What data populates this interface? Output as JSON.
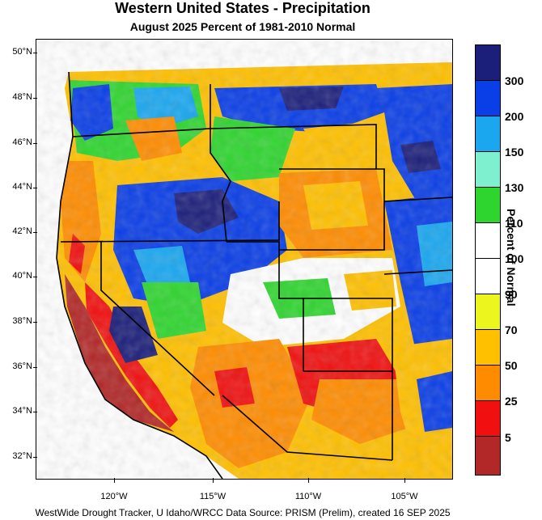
{
  "map": {
    "title": "Western United States - Precipitation",
    "subtitle": "August 2025  Percent of 1981-2010 Normal",
    "colorbar_title": "Percent of Normal",
    "footer": "WestWide Drought Tracker, U Idaho/WRCC Data Source: PRISM (Prelim), created 16 SEP 2025",
    "lat_labels": [
      "50°N",
      "48°N",
      "46°N",
      "44°N",
      "42°N",
      "40°N",
      "38°N",
      "36°N",
      "34°N",
      "32°N"
    ],
    "lon_labels": [
      "120°W",
      "115°W",
      "110°W",
      "105°W"
    ],
    "colorbar": {
      "colors": [
        "#1c1f7a",
        "#0a3ee6",
        "#1aa7f0",
        "#7ef0d0",
        "#2fd52f",
        "#ffffff",
        "#ffffff",
        "#ecf51e",
        "#ffc000",
        "#ff8c00",
        "#f01010",
        "#b22828"
      ],
      "labels": [
        "300",
        "200",
        "150",
        "130",
        "110",
        "100",
        "90",
        "70",
        "50",
        "25",
        "5"
      ]
    }
  }
}
